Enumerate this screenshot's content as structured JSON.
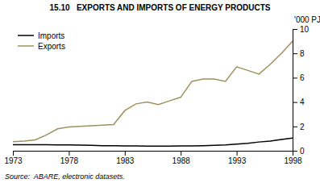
{
  "chart_data": {
    "type": "line",
    "title": "15.10   EXPORTS AND IMPORTS OF ENERGY PRODUCTS",
    "ylabel": "'000 PJ",
    "annotations": [
      "Source:  ABARE, electronic datasets."
    ],
    "x": [
      1973,
      1974,
      1975,
      1976,
      1977,
      1978,
      1979,
      1980,
      1981,
      1982,
      1983,
      1984,
      1985,
      1986,
      1987,
      1988,
      1989,
      1990,
      1991,
      1992,
      1993,
      1994,
      1995,
      1996,
      1997,
      1998
    ],
    "series": [
      {
        "name": "Imports",
        "color": "#000000",
        "values": [
          0.5,
          0.5,
          0.5,
          0.5,
          0.48,
          0.48,
          0.46,
          0.44,
          0.42,
          0.42,
          0.4,
          0.4,
          0.38,
          0.38,
          0.38,
          0.4,
          0.4,
          0.42,
          0.44,
          0.48,
          0.55,
          0.62,
          0.72,
          0.8,
          0.92,
          1.05
        ]
      },
      {
        "name": "Exports",
        "color": "#a09060",
        "values": [
          0.75,
          0.8,
          0.9,
          1.3,
          1.8,
          1.95,
          2.0,
          2.05,
          2.1,
          2.15,
          3.3,
          3.85,
          4.0,
          3.8,
          4.1,
          4.4,
          5.7,
          5.9,
          5.9,
          5.7,
          6.9,
          6.6,
          6.3,
          7.1,
          8.0,
          9.0
        ]
      }
    ],
    "xlim": [
      1973,
      1998
    ],
    "xticks": [
      1973,
      1978,
      1983,
      1988,
      1993,
      1998
    ],
    "ylim": [
      0,
      10
    ],
    "yticks": [
      0,
      2,
      4,
      6,
      8,
      10
    ],
    "grid": false,
    "legend": "upper left"
  }
}
